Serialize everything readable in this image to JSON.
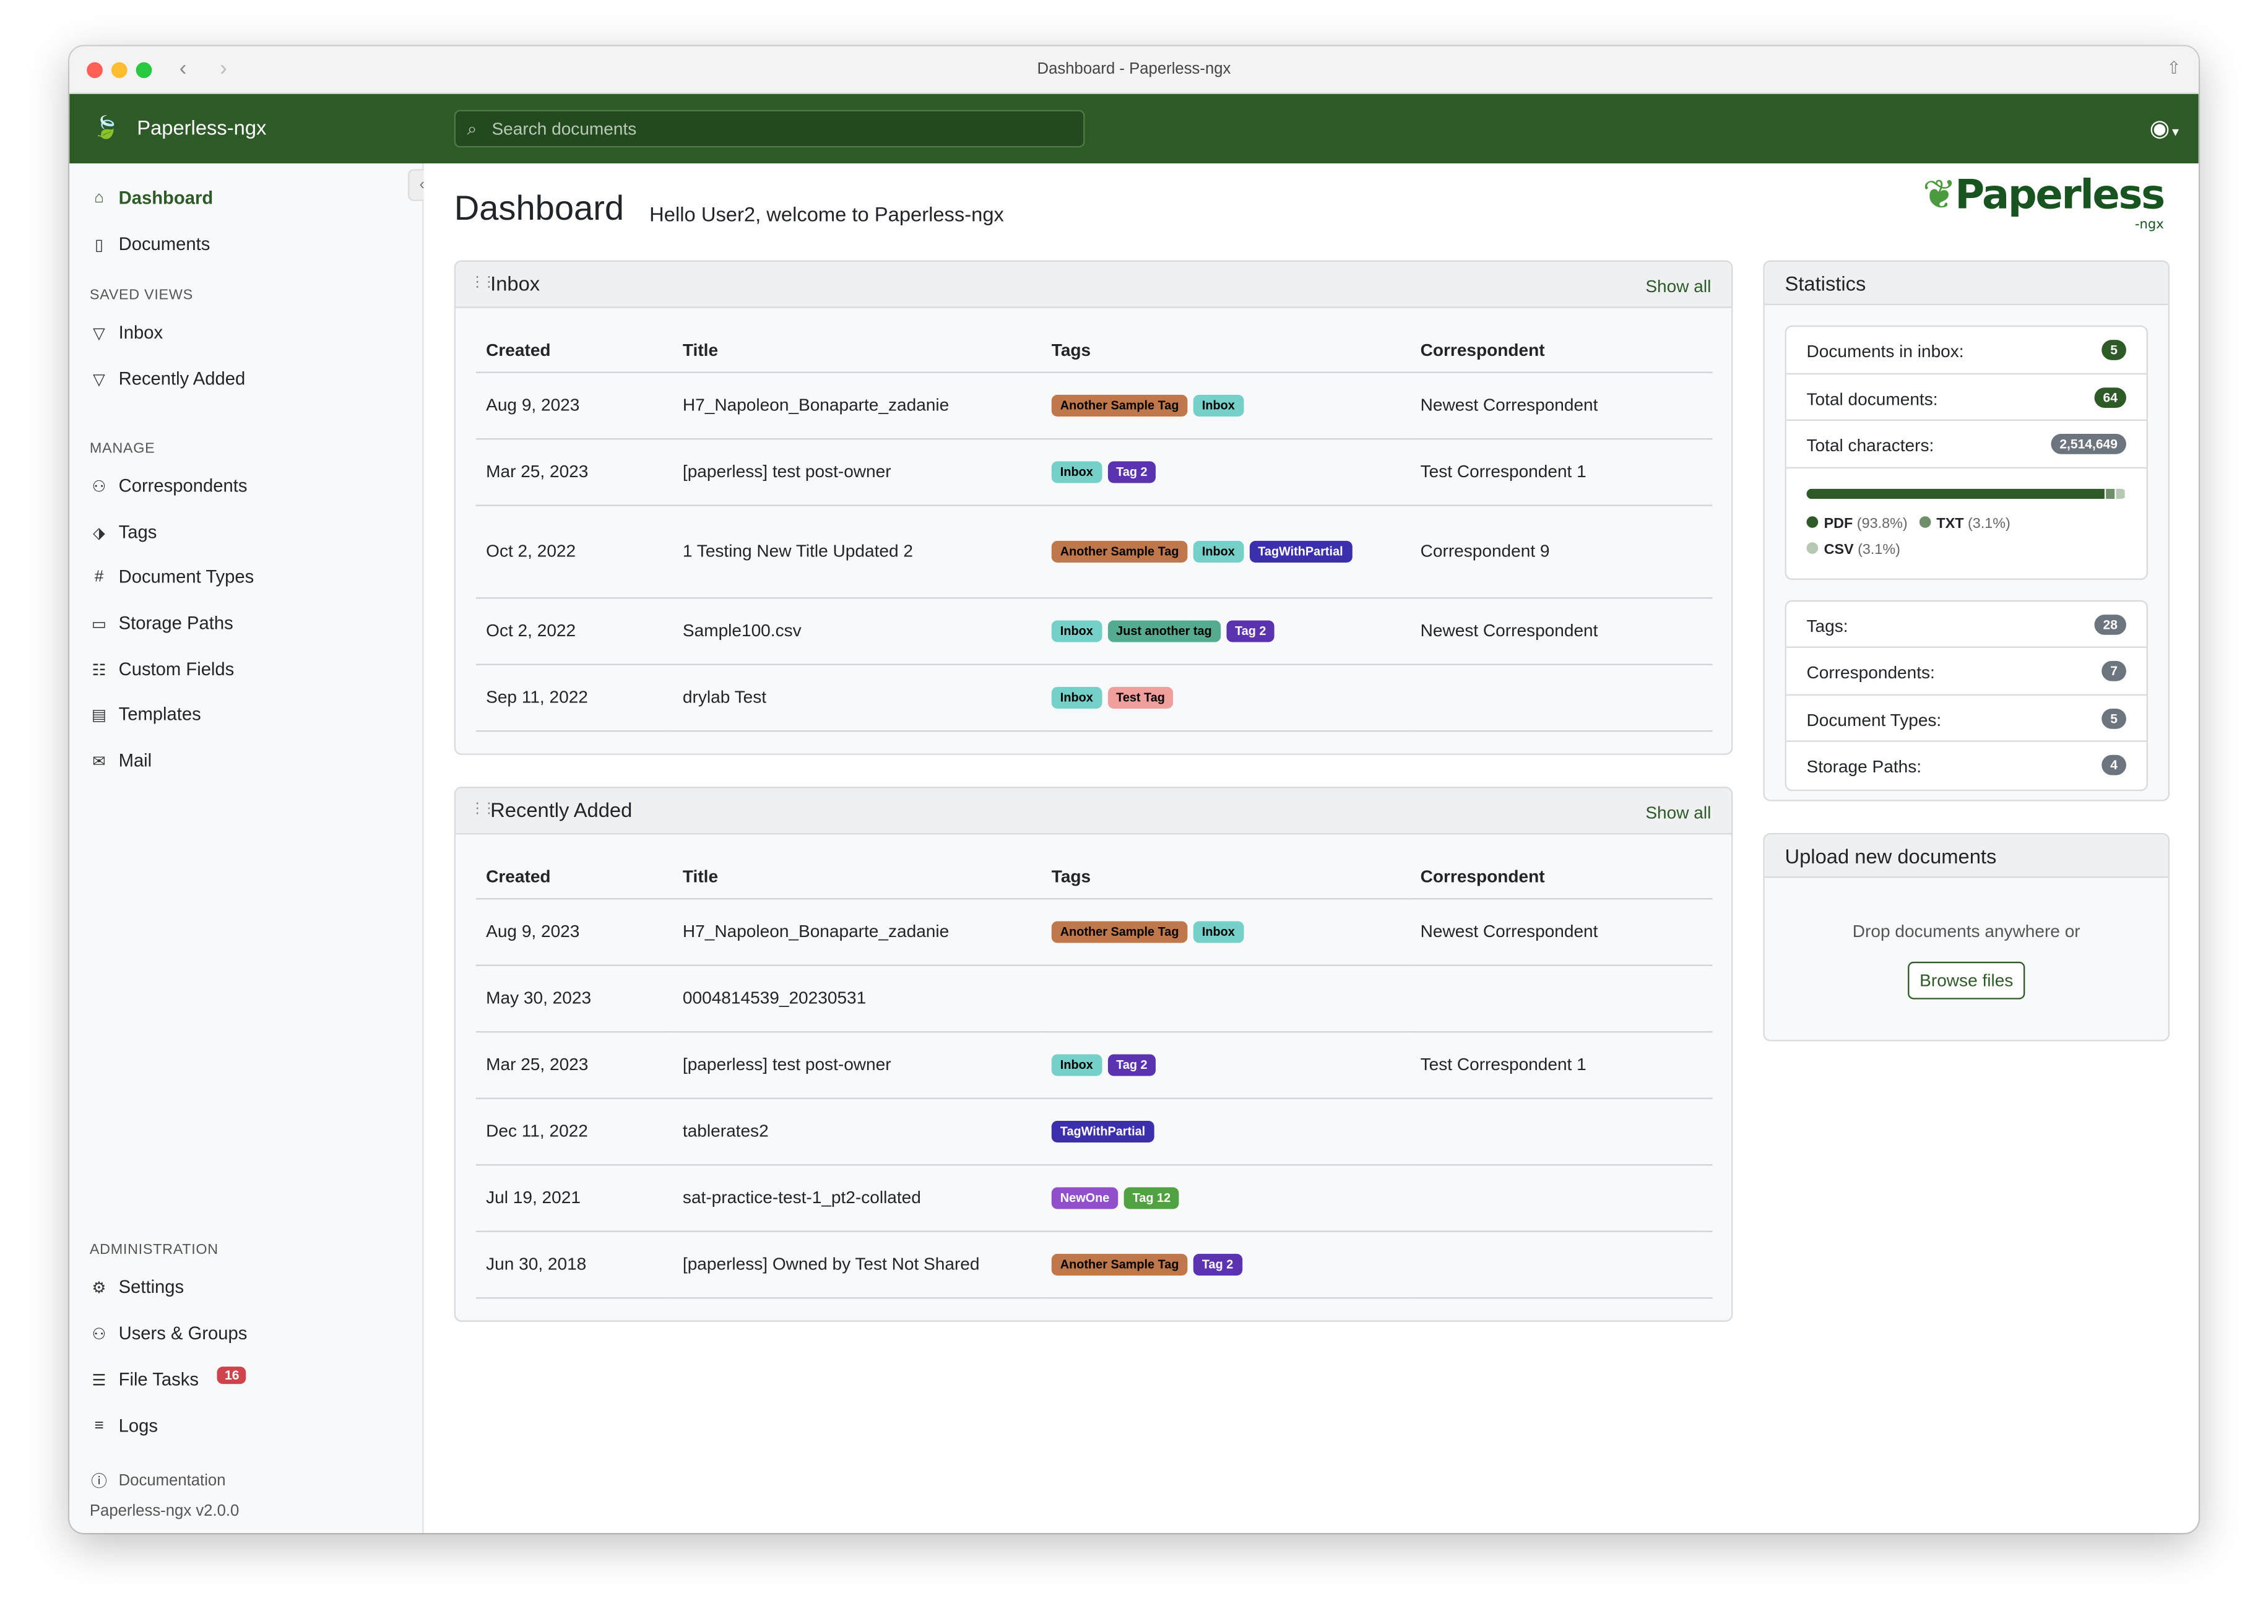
{
  "window": {
    "title": "Dashboard - Paperless-ngx"
  },
  "navbar": {
    "brand": "Paperless-ngx",
    "search_placeholder": "Search documents"
  },
  "sidebar": {
    "items": [
      {
        "label": "Dashboard",
        "icon": "house-icon"
      },
      {
        "label": "Documents",
        "icon": "files-icon"
      }
    ],
    "saved_views_heading": "SAVED VIEWS",
    "saved_views": [
      {
        "label": "Inbox"
      },
      {
        "label": "Recently Added"
      }
    ],
    "manage_heading": "MANAGE",
    "manage": [
      {
        "label": "Correspondents",
        "icon": "person-icon"
      },
      {
        "label": "Tags",
        "icon": "tags-icon"
      },
      {
        "label": "Document Types",
        "icon": "hash-icon"
      },
      {
        "label": "Storage Paths",
        "icon": "folder-icon"
      },
      {
        "label": "Custom Fields",
        "icon": "ui-radios-icon"
      },
      {
        "label": "Templates",
        "icon": "file-text-icon"
      },
      {
        "label": "Mail",
        "icon": "envelope-icon"
      }
    ],
    "admin_heading": "ADMINISTRATION",
    "admin": [
      {
        "label": "Settings",
        "icon": "gear-icon"
      },
      {
        "label": "Users & Groups",
        "icon": "people-icon"
      },
      {
        "label": "File Tasks",
        "icon": "list-task-icon",
        "badge": "16"
      },
      {
        "label": "Logs",
        "icon": "text-left-icon"
      }
    ],
    "documentation": "Documentation",
    "version": "Paperless-ngx v2.0.0"
  },
  "header": {
    "title": "Dashboard",
    "welcome": "Hello User2, welcome to Paperless-ngx",
    "logo": "Paperless",
    "logo_sub": "-ngx"
  },
  "columns": [
    "Created",
    "Title",
    "Tags",
    "Correspondent"
  ],
  "inbox": {
    "title": "Inbox",
    "show_all": "Show all",
    "rows": [
      {
        "created": "Aug 9, 2023",
        "title": "H7_Napoleon_Bonaparte_zadanie",
        "tags": [
          "Another Sample Tag",
          "Inbox"
        ],
        "correspondent": "Newest Correspondent"
      },
      {
        "created": "Mar 25, 2023",
        "title": "[paperless] test post-owner",
        "tags": [
          "Inbox",
          "Tag 2"
        ],
        "correspondent": "Test Correspondent 1"
      },
      {
        "created": "Oct 2, 2022",
        "title": "1 Testing New Title Updated 2",
        "tags": [
          "Another Sample Tag",
          "Inbox",
          "TagWithPartial"
        ],
        "correspondent": "Correspondent 9"
      },
      {
        "created": "Oct 2, 2022",
        "title": "Sample100.csv",
        "tags": [
          "Inbox",
          "Just another tag",
          "Tag 2"
        ],
        "correspondent": "Newest Correspondent"
      },
      {
        "created": "Sep 11, 2022",
        "title": "drylab Test",
        "tags": [
          "Inbox",
          "Test Tag"
        ],
        "correspondent": ""
      }
    ]
  },
  "recent": {
    "title": "Recently Added",
    "show_all": "Show all",
    "rows": [
      {
        "created": "Aug 9, 2023",
        "title": "H7_Napoleon_Bonaparte_zadanie",
        "tags": [
          "Another Sample Tag",
          "Inbox"
        ],
        "correspondent": "Newest Correspondent"
      },
      {
        "created": "May 30, 2023",
        "title": "0004814539_20230531",
        "tags": [],
        "correspondent": ""
      },
      {
        "created": "Mar 25, 2023",
        "title": "[paperless] test post-owner",
        "tags": [
          "Inbox",
          "Tag 2"
        ],
        "correspondent": "Test Correspondent 1"
      },
      {
        "created": "Dec 11, 2022",
        "title": "tablerates2",
        "tags": [
          "TagWithPartial"
        ],
        "correspondent": ""
      },
      {
        "created": "Jul 19, 2021",
        "title": "sat-practice-test-1_pt2-collated",
        "tags": [
          "NewOne",
          "Tag 12"
        ],
        "correspondent": ""
      },
      {
        "created": "Jun 30, 2018",
        "title": "[paperless] Owned by Test Not Shared",
        "tags": [
          "Another Sample Tag",
          "Tag 2"
        ],
        "correspondent": ""
      }
    ]
  },
  "tag_colors": {
    "Another Sample Tag": {
      "bg": "#c0784b",
      "fg": "#000000"
    },
    "Inbox": {
      "bg": "#74d0c8",
      "fg": "#000000"
    },
    "Tag 2": {
      "bg": "#5b33b0",
      "fg": "#ffffff"
    },
    "TagWithPartial": {
      "bg": "#3b2fae",
      "fg": "#ffffff"
    },
    "Just another tag": {
      "bg": "#55ab8f",
      "fg": "#000000"
    },
    "Test Tag": {
      "bg": "#ef9f9c",
      "fg": "#000000"
    },
    "NewOne": {
      "bg": "#924fcc",
      "fg": "#ffffff"
    },
    "Tag 12": {
      "bg": "#4fa23f",
      "fg": "#ffffff"
    }
  },
  "statistics": {
    "title": "Statistics",
    "counts": [
      {
        "label": "Documents in inbox:",
        "value": "5",
        "color": "#2d5a27"
      },
      {
        "label": "Total documents:",
        "value": "64",
        "color": "#2d5a27"
      },
      {
        "label": "Total characters:",
        "value": "2,514,649",
        "color": "#6c757d"
      }
    ],
    "filetypes": [
      {
        "name": "PDF",
        "pct": "(93.8%)",
        "value": 93.8,
        "color": "#2d5a27"
      },
      {
        "name": "TXT",
        "pct": "(3.1%)",
        "value": 3.1,
        "color": "#6f8f6b"
      },
      {
        "name": "CSV",
        "pct": "(3.1%)",
        "value": 3.1,
        "color": "#b7c9b4"
      }
    ],
    "objects": [
      {
        "label": "Tags:",
        "value": "28"
      },
      {
        "label": "Correspondents:",
        "value": "7"
      },
      {
        "label": "Document Types:",
        "value": "5"
      },
      {
        "label": "Storage Paths:",
        "value": "4"
      }
    ]
  },
  "upload": {
    "title": "Upload new documents",
    "hint": "Drop documents anywhere or",
    "browse": "Browse files"
  }
}
